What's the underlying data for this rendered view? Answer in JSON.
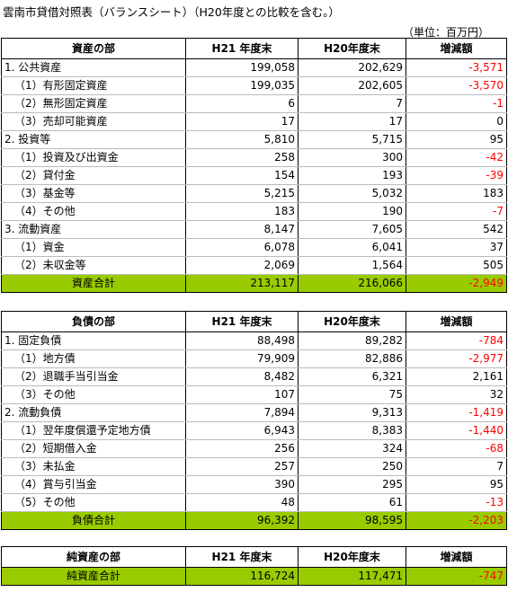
{
  "title": "雲南市貸借対照表（バランスシート）（H20年度との比較を含む。）",
  "unit": "（単位：百万円）",
  "tables": [
    {
      "header": [
        "資産の部",
        "H21 年度末",
        "H20年度末",
        "増減額"
      ],
      "rows": [
        [
          "1. 公共資産",
          "199,058",
          "202,629",
          "-3,571"
        ],
        [
          "（1）有形固定資産",
          "199,035",
          "202,605",
          "-3,570"
        ],
        [
          "（2）無形固定資産",
          "6",
          "7",
          "-1"
        ],
        [
          "（3）売却可能資産",
          "17",
          "17",
          "0"
        ],
        [
          "2. 投資等",
          "5,810",
          "5,715",
          "95"
        ],
        [
          "（1）投資及び出資金",
          "258",
          "300",
          "-42"
        ],
        [
          "（2）貸付金",
          "154",
          "193",
          "-39"
        ],
        [
          "（3）基金等",
          "5,215",
          "5,032",
          "183"
        ],
        [
          "（4）その他",
          "183",
          "190",
          "-7"
        ],
        [
          "3. 流動資産",
          "8,147",
          "7,605",
          "542"
        ],
        [
          "（1）資金",
          "6,078",
          "6,041",
          "37"
        ],
        [
          "（2）未収金等",
          "2,069",
          "1,564",
          "505"
        ]
      ],
      "total": [
        "資産合計",
        "213,117",
        "216,066",
        "-2,949"
      ]
    },
    {
      "header": [
        "負債の部",
        "H21 年度末",
        "H20年度末",
        "増減額"
      ],
      "rows": [
        [
          "1. 固定負債",
          "88,498",
          "89,282",
          "-784"
        ],
        [
          "（1）地方債",
          "79,909",
          "82,886",
          "-2,977"
        ],
        [
          "（2）退職手当引当金",
          "8,482",
          "6,321",
          "2,161"
        ],
        [
          "（3）その他",
          "107",
          "75",
          "32"
        ],
        [
          "2. 流動負債",
          "7,894",
          "9,313",
          "-1,419"
        ],
        [
          "（1）翌年度償還予定地方債",
          "6,943",
          "8,383",
          "-1,440"
        ],
        [
          "（2）短期借入金",
          "256",
          "324",
          "-68"
        ],
        [
          "（3）未払金",
          "257",
          "250",
          "7"
        ],
        [
          "（4）賞与引当金",
          "390",
          "295",
          "95"
        ],
        [
          "（5）その他",
          "48",
          "61",
          "-13"
        ]
      ],
      "total": [
        "負債合計",
        "96,392",
        "98,595",
        "-2,203"
      ]
    },
    {
      "header": [
        "純資産の部",
        "H21 年度末",
        "H20年度末",
        "増減額"
      ],
      "rows": [],
      "total": [
        "純資産合計",
        "116,724",
        "117,471",
        "-747"
      ]
    }
  ]
}
